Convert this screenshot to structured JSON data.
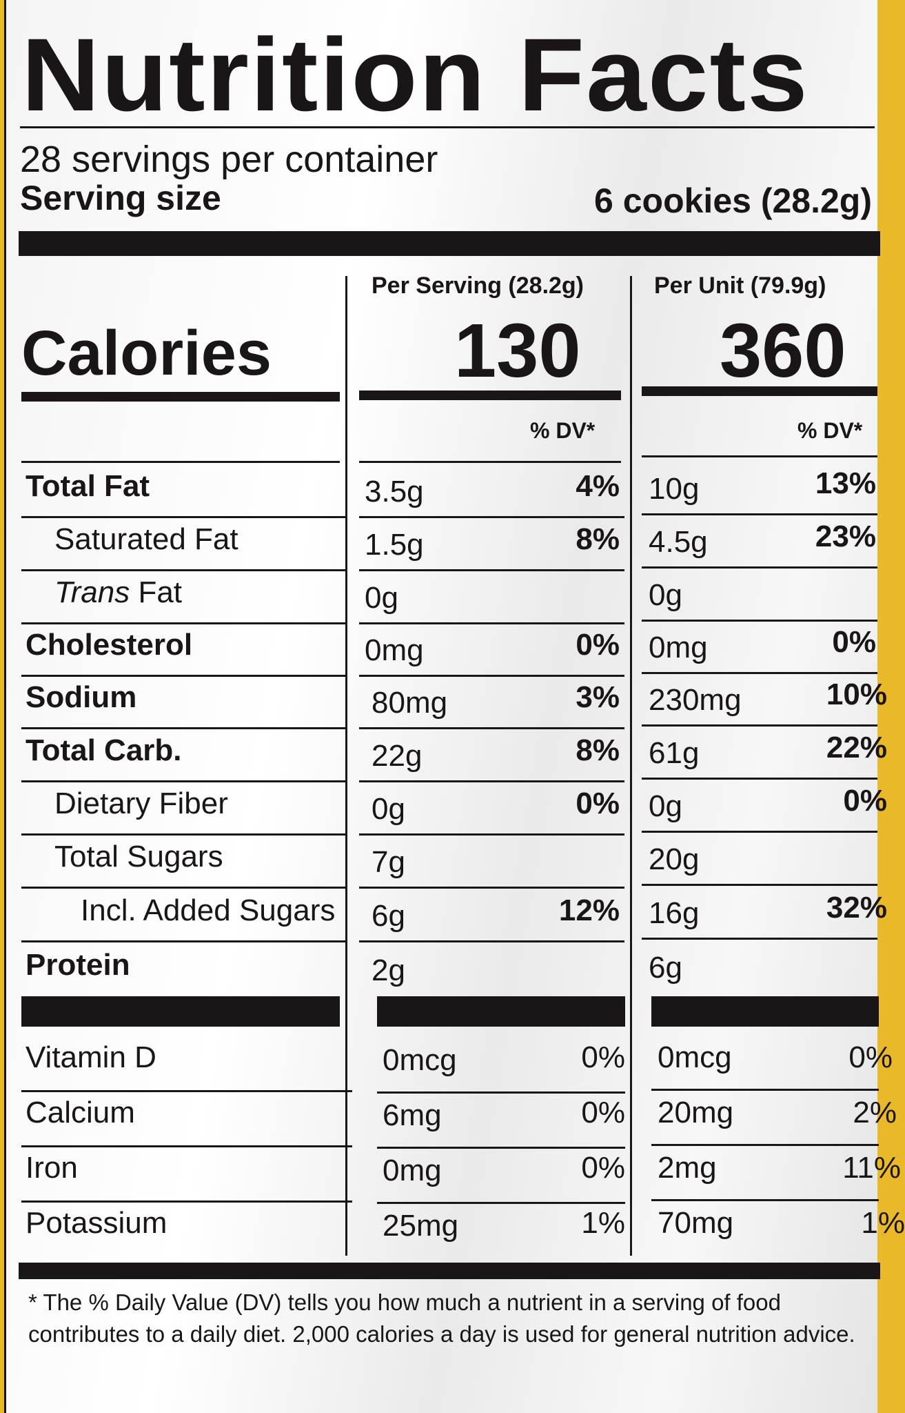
{
  "title": "Nutrition Facts",
  "servings_per_container": "28 servings per container",
  "serving_size_label": "Serving size",
  "serving_size_value": "6 cookies (28.2g)",
  "columns": {
    "per_serving": "Per Serving (28.2g)",
    "per_unit": "Per Unit (79.9g)"
  },
  "calories": {
    "label": "Calories",
    "per_serving": "130",
    "per_unit": "360"
  },
  "dv_header": "% DV*",
  "nutrients": [
    {
      "label": "Total Fat",
      "bold": true,
      "indent": 0,
      "serv": "3.5g",
      "serv_dv": "4%",
      "unit": "10g",
      "unit_dv": "13%"
    },
    {
      "label": "Saturated Fat",
      "bold": false,
      "indent": 1,
      "serv": "1.5g",
      "serv_dv": "8%",
      "unit": "4.5g",
      "unit_dv": "23%"
    },
    {
      "label": "Trans Fat",
      "bold": false,
      "indent": 1,
      "italic_prefix": true,
      "serv": "0g",
      "serv_dv": "",
      "unit": "0g",
      "unit_dv": ""
    },
    {
      "label": "Cholesterol",
      "bold": true,
      "indent": 0,
      "serv": "0mg",
      "serv_dv": "0%",
      "unit": "0mg",
      "unit_dv": "0%"
    },
    {
      "label": "Sodium",
      "bold": true,
      "indent": 0,
      "serv": "80mg",
      "serv_dv": "3%",
      "unit": "230mg",
      "unit_dv": "10%"
    },
    {
      "label": "Total Carb.",
      "bold": true,
      "indent": 0,
      "serv": "22g",
      "serv_dv": "8%",
      "unit": "61g",
      "unit_dv": "22%"
    },
    {
      "label": "Dietary Fiber",
      "bold": false,
      "indent": 1,
      "serv": "0g",
      "serv_dv": "0%",
      "unit": "0g",
      "unit_dv": "0%"
    },
    {
      "label": "Total Sugars",
      "bold": false,
      "indent": 1,
      "serv": "7g",
      "serv_dv": "",
      "unit": "20g",
      "unit_dv": ""
    },
    {
      "label": "Incl. Added Sugars",
      "bold": false,
      "indent": 2,
      "serv": "6g",
      "serv_dv": "12%",
      "unit": "16g",
      "unit_dv": "32%"
    },
    {
      "label": "Protein",
      "bold": true,
      "indent": 0,
      "serv": "2g",
      "serv_dv": "",
      "unit": "6g",
      "unit_dv": ""
    }
  ],
  "vitamins": [
    {
      "label": "Vitamin D",
      "serv": "0mcg",
      "serv_dv": "0%",
      "unit": "0mcg",
      "unit_dv": "0%"
    },
    {
      "label": "Calcium",
      "serv": "6mg",
      "serv_dv": "0%",
      "unit": "20mg",
      "unit_dv": "2%"
    },
    {
      "label": "Iron",
      "serv": "0mg",
      "serv_dv": "0%",
      "unit": "2mg",
      "unit_dv": "11%"
    },
    {
      "label": "Potassium",
      "serv": "25mg",
      "serv_dv": "1%",
      "unit": "70mg",
      "unit_dv": "1%"
    }
  ],
  "footnote": "* The % Daily Value (DV) tells you how much a nutrient in a serving of food contributes to a daily diet. 2,000 calories a day is used for general nutrition advice.",
  "colors": {
    "ink": "#1a1516",
    "package_yellow": "#e9b92a",
    "label_bg": "#f4f4f4"
  }
}
